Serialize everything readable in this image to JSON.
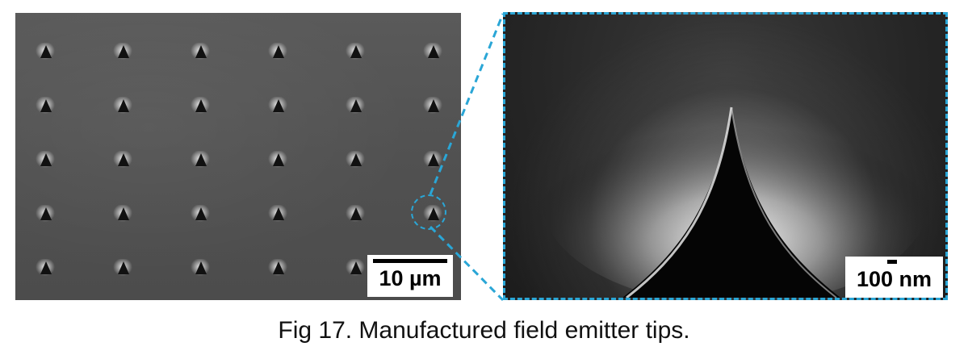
{
  "figure": {
    "caption": "Fig 17. Manufactured field emitter tips.",
    "accent_color": "#2aa6d6"
  },
  "left_image": {
    "scale_label": "10 µm",
    "grid": {
      "rows": 5,
      "columns": 6
    }
  },
  "right_image": {
    "scale_label": "100 nm"
  }
}
